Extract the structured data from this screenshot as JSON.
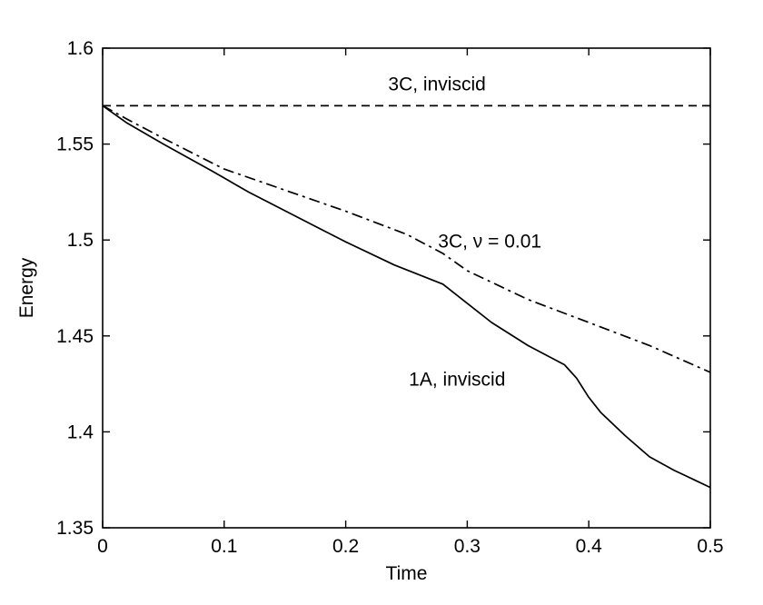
{
  "chart_data": {
    "type": "line",
    "title": "",
    "xlabel": "Time",
    "ylabel": "Energy",
    "xlim": [
      0,
      0.5
    ],
    "ylim": [
      1.35,
      1.6
    ],
    "xticks": [
      "0",
      "0.1",
      "0.2",
      "0.3",
      "0.4",
      "0.5"
    ],
    "yticks": [
      "1.35",
      "1.4",
      "1.45",
      "1.5",
      "1.55",
      "1.6"
    ],
    "grid": false,
    "legend": "none",
    "series": [
      {
        "name": "3C, inviscid",
        "style": "dashed",
        "x": [
          0,
          0.5
        ],
        "y": [
          1.57,
          1.57
        ]
      },
      {
        "name": "3C,  ν = 0.01",
        "style": "dashdot",
        "x": [
          0,
          0.02,
          0.05,
          0.1,
          0.15,
          0.2,
          0.25,
          0.28,
          0.3,
          0.35,
          0.4,
          0.45,
          0.5
        ],
        "y": [
          1.57,
          1.563,
          1.553,
          1.537,
          1.526,
          1.515,
          1.503,
          1.493,
          1.484,
          1.469,
          1.457,
          1.445,
          1.431
        ]
      },
      {
        "name": "1A, inviscid",
        "style": "solid",
        "x": [
          0,
          0.02,
          0.05,
          0.09,
          0.12,
          0.16,
          0.2,
          0.24,
          0.28,
          0.3,
          0.32,
          0.35,
          0.38,
          0.39,
          0.4,
          0.41,
          0.43,
          0.45,
          0.47,
          0.5
        ],
        "y": [
          1.57,
          1.561,
          1.55,
          1.536,
          1.525,
          1.512,
          1.499,
          1.487,
          1.477,
          1.467,
          1.457,
          1.445,
          1.435,
          1.428,
          1.418,
          1.41,
          1.398,
          1.387,
          1.38,
          1.371
        ]
      }
    ],
    "annotations": [
      {
        "text": "3C, inviscid",
        "x": 0.235,
        "y": 1.578
      },
      {
        "text": "3C,  ν = 0.01",
        "x": 0.276,
        "y": 1.496
      },
      {
        "text": "1A, inviscid",
        "x": 0.252,
        "y": 1.424
      }
    ]
  }
}
